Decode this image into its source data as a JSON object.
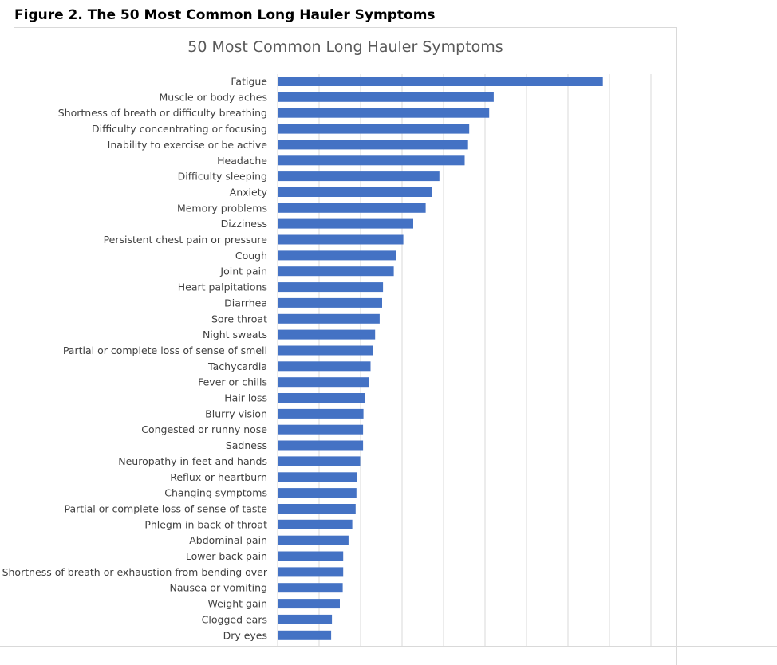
{
  "figure_caption": "Figure 2. The 50 Most Common Long Hauler Symptoms",
  "colors": {
    "bar": "#4472C4",
    "grid": "#d9d9d9"
  },
  "chart_data": {
    "type": "bar",
    "orientation": "horizontal",
    "title": "50 Most Common Long Hauler Symptoms",
    "xlabel": "",
    "ylabel": "",
    "grid": true,
    "xlim": [
      0,
      900
    ],
    "categories": [
      "Fatigue",
      "Muscle or body aches",
      "Shortness of breath or difficulty breathing",
      "Difficulty concentrating or focusing",
      "Inability to exercise or be active",
      "Headache",
      "Difficulty sleeping",
      "Anxiety",
      "Memory problems",
      "Dizziness",
      "Persistent chest pain or pressure",
      "Cough",
      "Joint pain",
      "Heart palpitations",
      "Diarrhea",
      "Sore throat",
      "Night sweats",
      "Partial or complete loss of sense of smell",
      "Tachycardia",
      "Fever or chills",
      "Hair loss",
      "Blurry vision",
      "Congested or runny nose",
      "Sadness",
      "Neuropathy in feet and hands",
      "Reflux or heartburn",
      "Changing symptoms",
      "Partial or complete loss of sense of taste",
      "Phlegm in back of throat",
      "Abdominal pain",
      "Lower back pain",
      "Shortness of breath or exhaustion from bending over",
      "Nausea or vomiting",
      "Weight gain",
      "Clogged ears",
      "Dry eyes"
    ],
    "values": [
      784,
      521,
      510,
      462,
      459,
      451,
      390,
      372,
      357,
      327,
      303,
      286,
      280,
      254,
      252,
      246,
      235,
      229,
      224,
      220,
      211,
      207,
      206,
      206,
      199,
      191,
      190,
      188,
      180,
      171,
      158,
      158,
      157,
      150,
      131,
      129
    ]
  }
}
